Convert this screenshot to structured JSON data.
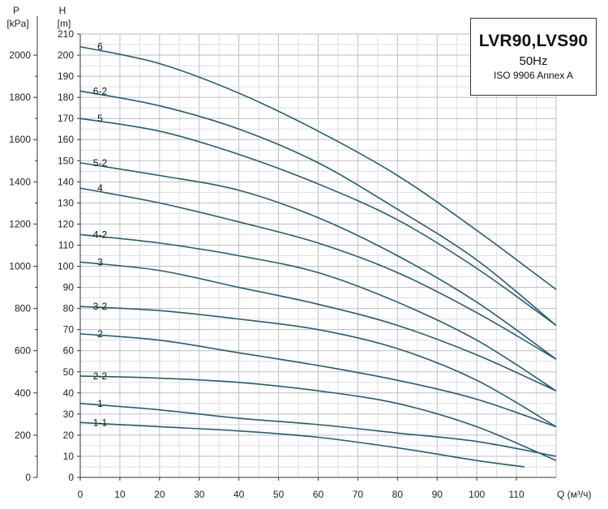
{
  "chart_data": {
    "type": "line",
    "title": "LVR90,LVS90",
    "subtitle": "50Hz",
    "standard": "ISO 9906 Annex A",
    "xlabel": "Q (м³/ч)",
    "ylabel_head": "H",
    "ylabel_head_unit": "[m]",
    "ylabel_pressure": "P",
    "ylabel_pressure_unit": "[kPa]",
    "xlim": [
      0,
      120
    ],
    "ylim": [
      0,
      210
    ],
    "x_ticks": [
      "0",
      "10",
      "20",
      "30",
      "40",
      "50",
      "60",
      "70",
      "80",
      "90",
      "100",
      "110"
    ],
    "h_ticks": [
      "0",
      "10",
      "20",
      "30",
      "40",
      "50",
      "60",
      "70",
      "80",
      "90",
      "100",
      "110",
      "120",
      "130",
      "140",
      "150",
      "160",
      "170",
      "180",
      "190",
      "200",
      "210"
    ],
    "p_ticks": [
      "0",
      "200",
      "400",
      "600",
      "800",
      "1000",
      "1200",
      "1400",
      "1600",
      "1800",
      "2000"
    ],
    "grid": true,
    "curve_color": "#1f5f74",
    "series": [
      {
        "name": "6",
        "x": [
          0,
          20,
          40,
          60,
          80,
          100,
          120
        ],
        "y": [
          204,
          196,
          182,
          164,
          143,
          117,
          89
        ]
      },
      {
        "name": "6-2",
        "x": [
          0,
          20,
          40,
          60,
          80,
          100,
          120
        ],
        "y": [
          183,
          176,
          165,
          149,
          127,
          103,
          72
        ]
      },
      {
        "name": "5",
        "x": [
          0,
          20,
          40,
          60,
          80,
          100,
          120
        ],
        "y": [
          170,
          164,
          153,
          139,
          122,
          99,
          72
        ]
      },
      {
        "name": "5-2",
        "x": [
          0,
          20,
          40,
          60,
          80,
          100,
          120
        ],
        "y": [
          149,
          143,
          136,
          123,
          105,
          83,
          56
        ]
      },
      {
        "name": "4",
        "x": [
          0,
          20,
          40,
          60,
          80,
          100,
          120
        ],
        "y": [
          137,
          130,
          121,
          111,
          97,
          78,
          56
        ]
      },
      {
        "name": "4-2",
        "x": [
          0,
          20,
          40,
          60,
          80,
          100,
          120
        ],
        "y": [
          115,
          111,
          105,
          97,
          83,
          65,
          41
        ]
      },
      {
        "name": "3",
        "x": [
          0,
          20,
          40,
          60,
          80,
          100,
          120
        ],
        "y": [
          102,
          98,
          90,
          82,
          72,
          58,
          41
        ]
      },
      {
        "name": "3-2",
        "x": [
          0,
          20,
          40,
          60,
          80,
          100,
          120
        ],
        "y": [
          81,
          79,
          75,
          70,
          61,
          46,
          24
        ]
      },
      {
        "name": "2",
        "x": [
          0,
          20,
          40,
          60,
          80,
          100,
          120
        ],
        "y": [
          68,
          65,
          59,
          53,
          46,
          37,
          24
        ]
      },
      {
        "name": "2-2",
        "x": [
          0,
          20,
          40,
          60,
          80,
          100,
          120
        ],
        "y": [
          48,
          47,
          45,
          41,
          35,
          24,
          8
        ]
      },
      {
        "name": "1",
        "x": [
          0,
          20,
          40,
          60,
          80,
          100,
          120
        ],
        "y": [
          35,
          32,
          28,
          25,
          21,
          17,
          10
        ]
      },
      {
        "name": "1-1",
        "x": [
          0,
          20,
          40,
          60,
          80,
          100,
          112
        ],
        "y": [
          26,
          24,
          22,
          19,
          14,
          8,
          5
        ]
      }
    ]
  }
}
